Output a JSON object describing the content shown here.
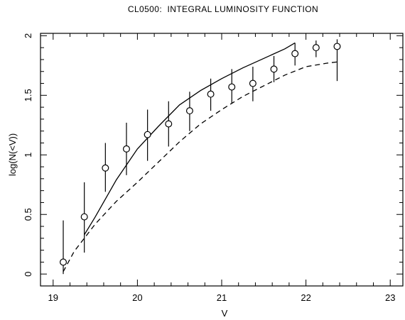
{
  "chart_data": {
    "type": "scatter",
    "title": "CL0500:  INTEGRAL LUMINOSITY FUNCTION",
    "xlabel": "V",
    "ylabel": "log(N(<V))",
    "xlim": [
      18.85,
      23.15
    ],
    "ylim": [
      -0.1,
      2.02
    ],
    "xticks": [
      19,
      20,
      21,
      22,
      23
    ],
    "xtick_labels": [
      "19",
      "20",
      "21",
      "22",
      "23"
    ],
    "yticks": [
      0,
      0.5,
      1,
      1.5,
      2
    ],
    "ytick_labels": [
      "0",
      "0.5",
      "1",
      "1.5",
      "2"
    ],
    "grid": false,
    "legend": "none",
    "series": [
      {
        "kind": "points-with-errorbars",
        "marker": "open-circle",
        "x": [
          19.12,
          19.37,
          19.62,
          19.87,
          20.12,
          20.37,
          20.62,
          20.87,
          21.12,
          21.37,
          21.62,
          21.87,
          22.12,
          22.37
        ],
        "y": [
          0.1,
          0.48,
          0.89,
          1.05,
          1.17,
          1.26,
          1.37,
          1.51,
          1.57,
          1.6,
          1.72,
          1.85,
          1.9,
          1.91
        ],
        "err_low": [
          0.1,
          0.3,
          0.2,
          0.22,
          0.22,
          0.19,
          0.17,
          0.14,
          0.14,
          0.15,
          0.11,
          0.1,
          0.08,
          0.29
        ],
        "err_high": [
          0.35,
          0.29,
          0.21,
          0.22,
          0.21,
          0.19,
          0.16,
          0.13,
          0.15,
          0.14,
          0.11,
          0.09,
          0.06,
          0.06
        ]
      },
      {
        "kind": "line",
        "style": "solid",
        "x": [
          19.37,
          19.5,
          19.75,
          20.0,
          20.25,
          20.5,
          20.75,
          21.0,
          21.25,
          21.5,
          21.75,
          21.87
        ],
        "y": [
          0.33,
          0.48,
          0.79,
          1.05,
          1.24,
          1.42,
          1.54,
          1.64,
          1.73,
          1.81,
          1.89,
          1.94
        ]
      },
      {
        "kind": "line",
        "style": "dashed",
        "x": [
          19.12,
          19.25,
          19.5,
          19.75,
          20.0,
          20.25,
          20.5,
          20.75,
          21.0,
          21.25,
          21.5,
          21.75,
          22.0,
          22.25,
          22.37
        ],
        "y": [
          0.02,
          0.19,
          0.42,
          0.61,
          0.77,
          0.94,
          1.11,
          1.26,
          1.38,
          1.49,
          1.58,
          1.67,
          1.74,
          1.77,
          1.78
        ]
      }
    ]
  }
}
